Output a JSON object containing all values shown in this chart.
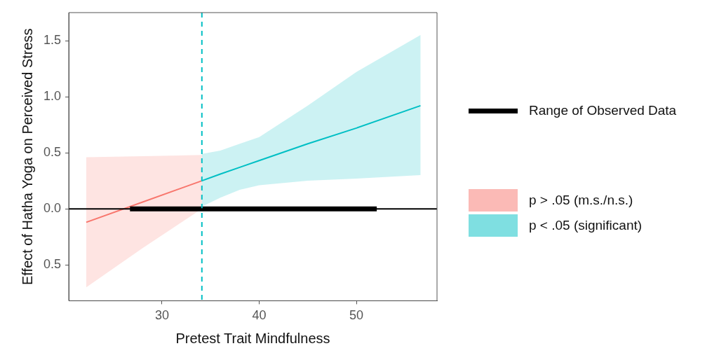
{
  "chart_data": {
    "type": "line",
    "xlabel": "Pretest Trait Mindfulness",
    "ylabel": "Effect of Hatha Yoga on Perceived Stress",
    "xlim": [
      20.4,
      58.3
    ],
    "xticks": [
      30,
      40,
      50
    ],
    "ylim": [
      -0.82,
      1.75
    ],
    "yticks": [
      {
        "value": -0.5,
        "label": "0.5"
      },
      {
        "value": 0,
        "label": "0.0"
      },
      0.5,
      {
        "value": 1,
        "label": "1.0"
      },
      1.5
    ],
    "series": [
      {
        "name": "Range of Observed Data",
        "color": "#000000",
        "x": [
          26.7,
          52.1
        ],
        "values": [
          0,
          0
        ]
      },
      {
        "name": "p > .05 (m.s./n.s.)",
        "color": "#f8766d",
        "x": [
          22.2,
          28,
          34.1
        ],
        "values": [
          -0.12,
          0.06,
          0.25
        ],
        "lower": [
          -0.7,
          -0.35,
          0
        ],
        "upper": [
          0.46,
          0.47,
          0.48
        ]
      },
      {
        "name": "p < .05 (significant)",
        "color": "#00bfc4",
        "x": [
          34.1,
          36,
          38,
          40,
          45,
          50,
          56.6
        ],
        "values": [
          0.25,
          0.31,
          0.37,
          0.43,
          0.58,
          0.72,
          0.92
        ],
        "lower": [
          0.02,
          0.1,
          0.17,
          0.21,
          0.25,
          0.27,
          0.3
        ],
        "upper": [
          0.49,
          0.52,
          0.58,
          0.64,
          0.92,
          1.22,
          1.55
        ]
      }
    ],
    "ref_lines": [
      {
        "axis": "x",
        "value": 34.1,
        "color": "#00bfc4",
        "line_style": "dashed"
      },
      {
        "axis": "y",
        "value": 0,
        "color": "#000000"
      }
    ],
    "grid": false,
    "legend": "right",
    "marker": "none",
    "line_style": "solid"
  }
}
